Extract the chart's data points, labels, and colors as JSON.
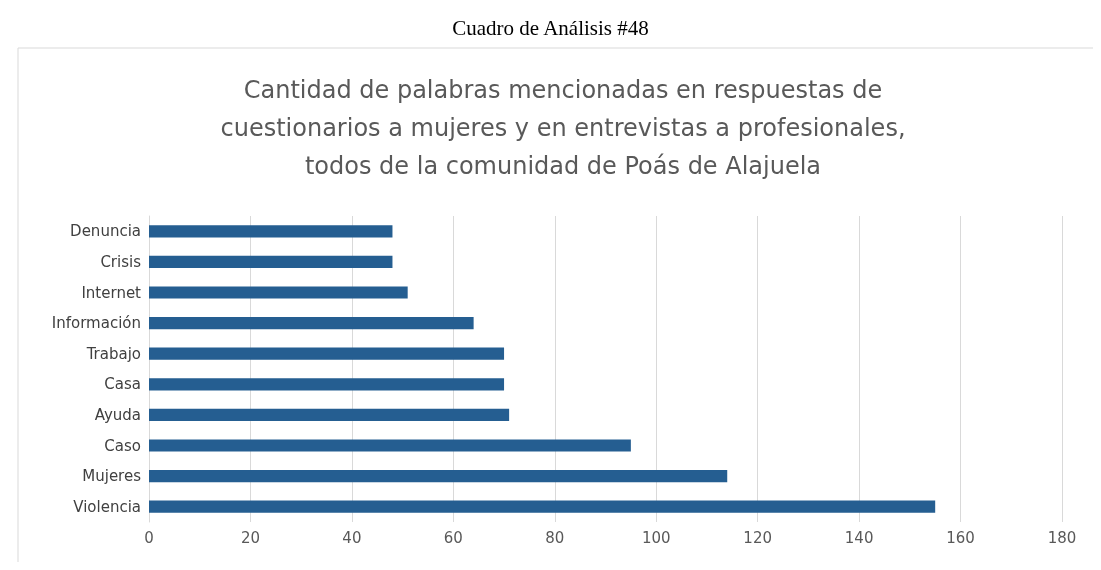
{
  "chart_data": {
    "type": "bar",
    "orientation": "horizontal",
    "title": "Cuadro de Análisis #48",
    "subtitle": "Cantidad de palabras mencionadas en respuestas de cuestionarios a mujeres y en entrevistas a profesionales, todos de la comunidad de Poás de Alajuela",
    "categories": [
      "Denuncia",
      "Crisis",
      "Internet",
      "Información",
      "Trabajo",
      "Casa",
      "Ayuda",
      "Caso",
      "Mujeres",
      "Violencia"
    ],
    "values": [
      48,
      48,
      51,
      64,
      70,
      70,
      71,
      95,
      114,
      155
    ],
    "color": "#255e91",
    "xlim": [
      0,
      180
    ],
    "xticks": [
      0,
      20,
      40,
      60,
      80,
      100,
      120,
      140,
      160,
      180
    ],
    "grid": "x"
  }
}
